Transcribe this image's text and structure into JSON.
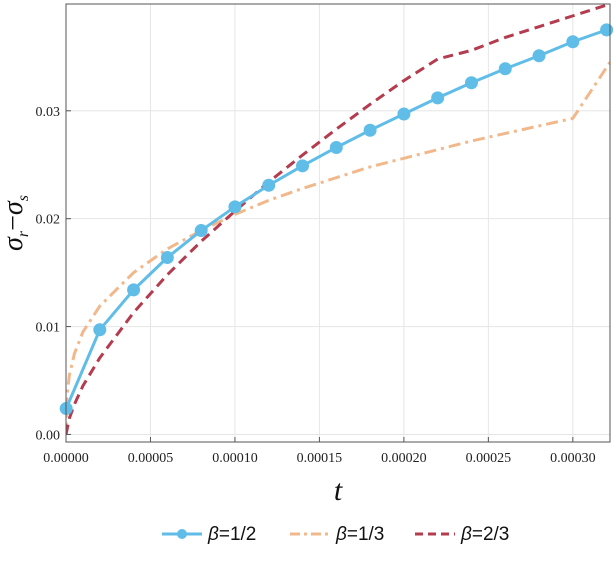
{
  "chart_data": {
    "type": "line",
    "xlabel": "t",
    "ylabel": "σ_r−σ_s",
    "ylabel_parts": {
      "sigma": "σ",
      "sub_r": "r",
      "minus": "−",
      "sub_s": "s"
    },
    "xlim": [
      0,
      0.000322
    ],
    "ylim": [
      -0.0007,
      0.0399
    ],
    "x_ticks": [
      0,
      5e-05,
      0.0001,
      0.00015,
      0.0002,
      0.00025,
      0.0003
    ],
    "x_tick_labels": [
      "0.00000",
      "0.00005",
      "0.00010",
      "0.00015",
      "0.00020",
      "0.00025",
      "0.00030"
    ],
    "y_ticks": [
      0,
      0.01,
      0.02,
      0.03
    ],
    "y_tick_labels": [
      "0.00",
      "0.01",
      "0.02",
      "0.03"
    ],
    "grid": true,
    "legend_placement": "bottom-center",
    "series": [
      {
        "name": "β=1/2",
        "legend_label": {
          "symbol": "β",
          "text": "=1/2"
        },
        "style": "solid-with-markers",
        "color": "#5fbde8",
        "x": [
          1e-07,
          2e-05,
          4e-05,
          6e-05,
          8e-05,
          0.0001,
          0.00012,
          0.00014,
          0.00016,
          0.00018,
          0.0002,
          0.00022,
          0.00024,
          0.00026,
          0.00028,
          0.0003,
          0.00032
        ],
        "y": [
          0.0024,
          0.0097,
          0.0134,
          0.0164,
          0.0189,
          0.0211,
          0.0231,
          0.0249,
          0.0266,
          0.0282,
          0.0297,
          0.0312,
          0.0326,
          0.0339,
          0.0351,
          0.0364,
          0.0375
        ]
      },
      {
        "name": "β=1/3",
        "legend_label": {
          "symbol": "β",
          "text": "=1/3"
        },
        "style": "dash-dot",
        "color": "#f1b88c",
        "x": [
          0,
          5e-07,
          2e-06,
          5e-06,
          1e-05,
          2e-05,
          4e-05,
          6e-05,
          8e-05,
          0.0001,
          0.00012,
          0.00014,
          0.00016,
          0.00018,
          0.0002,
          0.00022,
          0.00024,
          0.00026,
          0.00028,
          0.0003,
          0.000322
        ],
        "y": [
          0.0,
          0.0035,
          0.0055,
          0.0075,
          0.0095,
          0.0119,
          0.015,
          0.0172,
          0.0189,
          0.0204,
          0.0217,
          0.0228,
          0.0238,
          0.0248,
          0.0256,
          0.0264,
          0.0272,
          0.0279,
          0.0286,
          0.0293,
          0.0345
        ]
      },
      {
        "name": "β=2/3",
        "legend_label": {
          "symbol": "β",
          "text": "=2/3"
        },
        "style": "dashed",
        "color": "#b43c4e",
        "x": [
          0,
          2e-06,
          5e-06,
          1e-05,
          2e-05,
          4e-05,
          6e-05,
          8e-05,
          0.0001,
          0.00012,
          0.00014,
          0.00016,
          0.00018,
          0.0002,
          0.00022,
          0.00024,
          0.00026,
          0.00028,
          0.0003,
          0.000322
        ],
        "y": [
          0.0,
          0.0015,
          0.0028,
          0.0045,
          0.0071,
          0.0113,
          0.0148,
          0.0179,
          0.0207,
          0.0234,
          0.0259,
          0.0283,
          0.0306,
          0.0328,
          0.0348,
          0.0356,
          0.0368,
          0.0378,
          0.0388,
          0.0399
        ]
      }
    ]
  }
}
